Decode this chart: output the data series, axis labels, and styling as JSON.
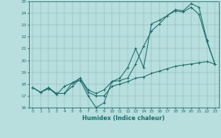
{
  "xlabel": "Humidex (Indice chaleur)",
  "xlim": [
    -0.5,
    23.5
  ],
  "ylim": [
    16,
    25
  ],
  "xticks": [
    0,
    1,
    2,
    3,
    4,
    5,
    6,
    7,
    8,
    9,
    10,
    11,
    12,
    13,
    14,
    15,
    16,
    17,
    18,
    19,
    20,
    21,
    22,
    23
  ],
  "yticks": [
    16,
    17,
    18,
    19,
    20,
    21,
    22,
    23,
    24,
    25
  ],
  "bg_color": "#b8dede",
  "line_color": "#1a6b6b",
  "line1_x": [
    0,
    1,
    2,
    3,
    4,
    5,
    6,
    7,
    8,
    9,
    10,
    11,
    12,
    13,
    14,
    15,
    16,
    17,
    18,
    19,
    20,
    21,
    22,
    23
  ],
  "line1_y": [
    17.7,
    17.3,
    17.7,
    17.1,
    17.8,
    18.1,
    18.3,
    17.0,
    16.0,
    16.4,
    18.2,
    18.5,
    19.4,
    21.0,
    19.4,
    23.1,
    23.4,
    23.8,
    24.2,
    24.1,
    24.5,
    23.9,
    21.6,
    19.7
  ],
  "line2_x": [
    0,
    1,
    2,
    3,
    4,
    5,
    6,
    7,
    8,
    9,
    10,
    11,
    12,
    13,
    14,
    15,
    16,
    17,
    18,
    19,
    20,
    21,
    22,
    23
  ],
  "line2_y": [
    17.7,
    17.3,
    17.7,
    17.2,
    17.2,
    18.1,
    18.5,
    17.5,
    17.2,
    17.5,
    18.2,
    18.3,
    18.5,
    19.7,
    21.2,
    22.5,
    23.1,
    23.8,
    24.3,
    24.2,
    24.8,
    24.5,
    21.7,
    19.7
  ],
  "line3_x": [
    0,
    1,
    2,
    3,
    4,
    5,
    6,
    7,
    8,
    9,
    10,
    11,
    12,
    13,
    14,
    15,
    16,
    17,
    18,
    19,
    20,
    21,
    22,
    23
  ],
  "line3_y": [
    17.7,
    17.3,
    17.6,
    17.2,
    17.2,
    17.8,
    18.5,
    17.3,
    17.0,
    17.0,
    17.8,
    18.0,
    18.2,
    18.5,
    18.6,
    18.9,
    19.1,
    19.3,
    19.5,
    19.6,
    19.7,
    19.8,
    19.9,
    19.7
  ]
}
